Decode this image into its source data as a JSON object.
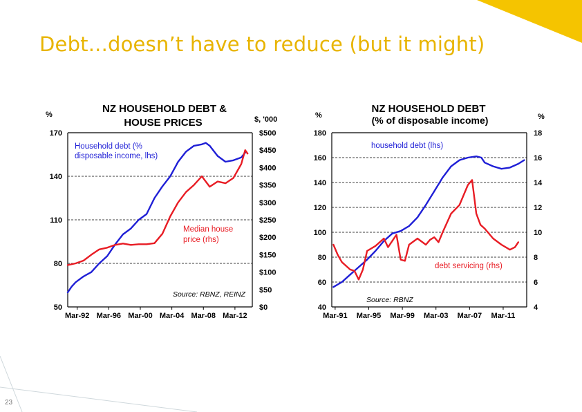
{
  "slide": {
    "title": "Debt...doesn’t have to reduce (but it might)",
    "page_number": "23",
    "accent_color": "#f5c400"
  },
  "chart_data": [
    {
      "type": "line",
      "title_line1": "NZ HOUSEHOLD  DEBT &",
      "title_line2": "HOUSE  PRICES",
      "y_left_unit": "%",
      "y_right_unit": "$, '000",
      "y_left_ticks": [
        "170",
        "140",
        "110",
        "80",
        "50"
      ],
      "y_left_range": [
        50,
        170
      ],
      "y_right_ticks": [
        "$500",
        "$450",
        "$400",
        "$350",
        "$300",
        "$250",
        "$200",
        "$150",
        "$100",
        "$50",
        "$0"
      ],
      "y_right_range": [
        0,
        500
      ],
      "x_ticks": [
        "Mar-92",
        "Mar-96",
        "Mar-00",
        "Mar-04",
        "Mar-08",
        "Mar-12"
      ],
      "x_range": [
        1991.0,
        2014.4
      ],
      "grid": "dashed horizontal",
      "annotations": {
        "debt_label_line1": "Household debt (%",
        "debt_label_line2": "disposable income, lhs)",
        "price_label_line1": "Median house",
        "price_label_line2": "price (rhs)",
        "source": "Source:  RBNZ, REINZ"
      },
      "series": [
        {
          "name": "Household debt (% disposable income, lhs)",
          "axis": "left",
          "color": "#1f1fd6",
          "points": [
            [
              1991.0,
              60
            ],
            [
              1991.5,
              64
            ],
            [
              1992,
              67
            ],
            [
              1993,
              71
            ],
            [
              1994,
              74
            ],
            [
              1995,
              80
            ],
            [
              1996,
              85
            ],
            [
              1997,
              93
            ],
            [
              1998,
              100
            ],
            [
              1999,
              104
            ],
            [
              2000,
              110
            ],
            [
              2001,
              114
            ],
            [
              2002,
              125
            ],
            [
              2003,
              133
            ],
            [
              2004,
              140
            ],
            [
              2005,
              150
            ],
            [
              2006,
              157
            ],
            [
              2007,
              161
            ],
            [
              2008,
              162
            ],
            [
              2008.5,
              163
            ],
            [
              2009,
              161
            ],
            [
              2010,
              154
            ],
            [
              2011,
              150
            ],
            [
              2012,
              151
            ],
            [
              2013,
              153
            ],
            [
              2013.6,
              157
            ]
          ]
        },
        {
          "name": "Median house price (rhs)",
          "axis": "right",
          "color": "#e81c24",
          "points": [
            [
              1991.0,
              120
            ],
            [
              1992,
              125
            ],
            [
              1993,
              133
            ],
            [
              1994,
              150
            ],
            [
              1995,
              165
            ],
            [
              1996,
              170
            ],
            [
              1997,
              178
            ],
            [
              1998,
              182
            ],
            [
              1999,
              178
            ],
            [
              2000,
              180
            ],
            [
              2001,
              180
            ],
            [
              2002,
              183
            ],
            [
              2003,
              210
            ],
            [
              2004,
              260
            ],
            [
              2005,
              300
            ],
            [
              2006,
              330
            ],
            [
              2007,
              350
            ],
            [
              2008,
              375
            ],
            [
              2008.5,
              360
            ],
            [
              2009,
              345
            ],
            [
              2010,
              360
            ],
            [
              2011,
              355
            ],
            [
              2012,
              370
            ],
            [
              2013,
              410
            ],
            [
              2013.5,
              450
            ],
            [
              2013.8,
              440
            ]
          ]
        }
      ]
    },
    {
      "type": "line",
      "title_line1": "NZ HOUSEHOLD  DEBT",
      "title_line2": "(% of disposable income)",
      "y_left_unit": "%",
      "y_right_unit": "%",
      "y_left_ticks": [
        "180",
        "160",
        "140",
        "120",
        "100",
        "80",
        "60",
        "40"
      ],
      "y_left_range": [
        40,
        180
      ],
      "y_right_ticks": [
        "18",
        "16",
        "14",
        "12",
        "10",
        "8",
        "6",
        "4"
      ],
      "y_right_range": [
        4,
        18
      ],
      "x_ticks": [
        "Mar-91",
        "Mar-95",
        "Mar-99",
        "Mar-03",
        "Mar-07",
        "Mar-11"
      ],
      "x_range": [
        1990.8,
        2014.0
      ],
      "grid": "dashed horizontal",
      "annotations": {
        "debt_label": "household debt (lhs)",
        "servicing_label": "debt servicing (rhs)",
        "source": "Source:  RBNZ"
      },
      "series": [
        {
          "name": "household debt (lhs)",
          "axis": "left",
          "color": "#1f1fd6",
          "points": [
            [
              1991,
              56
            ],
            [
              1992,
              60
            ],
            [
              1993,
              66
            ],
            [
              1994,
              72
            ],
            [
              1995,
              78
            ],
            [
              1996,
              85
            ],
            [
              1997,
              93
            ],
            [
              1998,
              99
            ],
            [
              1999,
              101
            ],
            [
              2000,
              105
            ],
            [
              2001,
              112
            ],
            [
              2002,
              122
            ],
            [
              2003,
              133
            ],
            [
              2004,
              144
            ],
            [
              2005,
              153
            ],
            [
              2006,
              158
            ],
            [
              2007,
              160
            ],
            [
              2008,
              161
            ],
            [
              2008.6,
              160
            ],
            [
              2009,
              156
            ],
            [
              2010,
              153
            ],
            [
              2011,
              151
            ],
            [
              2012,
              152
            ],
            [
              2013,
              155
            ],
            [
              2013.7,
              158
            ]
          ]
        },
        {
          "name": "debt servicing (rhs)",
          "axis": "right",
          "color": "#e81c24",
          "points": [
            [
              1991,
              9.0
            ],
            [
              1991.5,
              8.2
            ],
            [
              1992,
              7.6
            ],
            [
              1993,
              7.0
            ],
            [
              1993.5,
              6.9
            ],
            [
              1994,
              6.2
            ],
            [
              1994.5,
              7.0
            ],
            [
              1995,
              8.5
            ],
            [
              1996,
              8.9
            ],
            [
              1997,
              9.5
            ],
            [
              1997.5,
              8.8
            ],
            [
              1998,
              9.3
            ],
            [
              1998.5,
              9.8
            ],
            [
              1999,
              7.8
            ],
            [
              1999.5,
              7.7
            ],
            [
              2000,
              9.0
            ],
            [
              2001,
              9.5
            ],
            [
              2002,
              9.0
            ],
            [
              2002.5,
              9.4
            ],
            [
              2003,
              9.6
            ],
            [
              2003.5,
              9.2
            ],
            [
              2004,
              10.0
            ],
            [
              2005,
              11.5
            ],
            [
              2006,
              12.2
            ],
            [
              2007,
              13.8
            ],
            [
              2007.5,
              14.2
            ],
            [
              2008,
              11.5
            ],
            [
              2008.5,
              10.6
            ],
            [
              2009,
              10.3
            ],
            [
              2010,
              9.5
            ],
            [
              2011,
              9.0
            ],
            [
              2012,
              8.6
            ],
            [
              2012.6,
              8.8
            ],
            [
              2013,
              9.2
            ]
          ]
        }
      ]
    }
  ]
}
